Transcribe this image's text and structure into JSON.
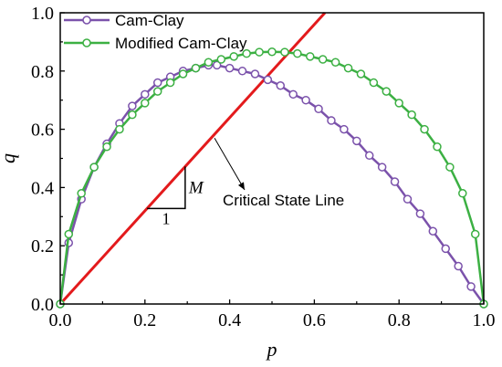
{
  "chart_data": {
    "type": "line",
    "xlabel": "p",
    "ylabel": "q",
    "xlim": [
      0,
      1.0
    ],
    "ylim": [
      0,
      1.0
    ],
    "xticks": [
      "0.0",
      "0.2",
      "0.4",
      "0.6",
      "0.8",
      "1.0"
    ],
    "yticks": [
      "0.0",
      "0.2",
      "0.4",
      "0.6",
      "0.8",
      "1.0"
    ],
    "legend": "top-left",
    "grid": false,
    "series": [
      {
        "name": "Cam-Clay",
        "color": "#7b52ab",
        "marker": "open-circle",
        "x": [
          0.0,
          0.02,
          0.05,
          0.08,
          0.11,
          0.14,
          0.17,
          0.2,
          0.23,
          0.26,
          0.29,
          0.32,
          0.35,
          0.37,
          0.4,
          0.43,
          0.46,
          0.49,
          0.52,
          0.55,
          0.58,
          0.61,
          0.64,
          0.67,
          0.7,
          0.73,
          0.76,
          0.79,
          0.82,
          0.85,
          0.88,
          0.91,
          0.94,
          0.97,
          1.0
        ],
        "y": [
          0.0,
          0.21,
          0.36,
          0.47,
          0.55,
          0.62,
          0.68,
          0.72,
          0.76,
          0.78,
          0.8,
          0.81,
          0.82,
          0.82,
          0.81,
          0.8,
          0.79,
          0.77,
          0.75,
          0.72,
          0.7,
          0.67,
          0.63,
          0.6,
          0.56,
          0.51,
          0.47,
          0.42,
          0.36,
          0.31,
          0.25,
          0.19,
          0.13,
          0.06,
          0.0
        ]
      },
      {
        "name": "Modified Cam-Clay",
        "color": "#3cb043",
        "marker": "open-circle",
        "x": [
          0.0,
          0.02,
          0.05,
          0.08,
          0.11,
          0.14,
          0.17,
          0.2,
          0.23,
          0.26,
          0.29,
          0.32,
          0.35,
          0.38,
          0.41,
          0.44,
          0.47,
          0.5,
          0.53,
          0.56,
          0.59,
          0.62,
          0.65,
          0.68,
          0.71,
          0.74,
          0.77,
          0.8,
          0.83,
          0.86,
          0.89,
          0.92,
          0.95,
          0.98,
          1.0
        ],
        "y": [
          0.0,
          0.24,
          0.38,
          0.47,
          0.54,
          0.6,
          0.65,
          0.69,
          0.73,
          0.76,
          0.79,
          0.81,
          0.83,
          0.84,
          0.85,
          0.86,
          0.865,
          0.866,
          0.865,
          0.86,
          0.85,
          0.84,
          0.83,
          0.81,
          0.79,
          0.76,
          0.73,
          0.69,
          0.65,
          0.6,
          0.54,
          0.47,
          0.38,
          0.24,
          0.0
        ]
      }
    ],
    "critical_state_line": {
      "label": "Critical State Line",
      "color": "#e31a1c",
      "slope": 1.6,
      "slope_label": "M",
      "run_label": "1"
    }
  }
}
